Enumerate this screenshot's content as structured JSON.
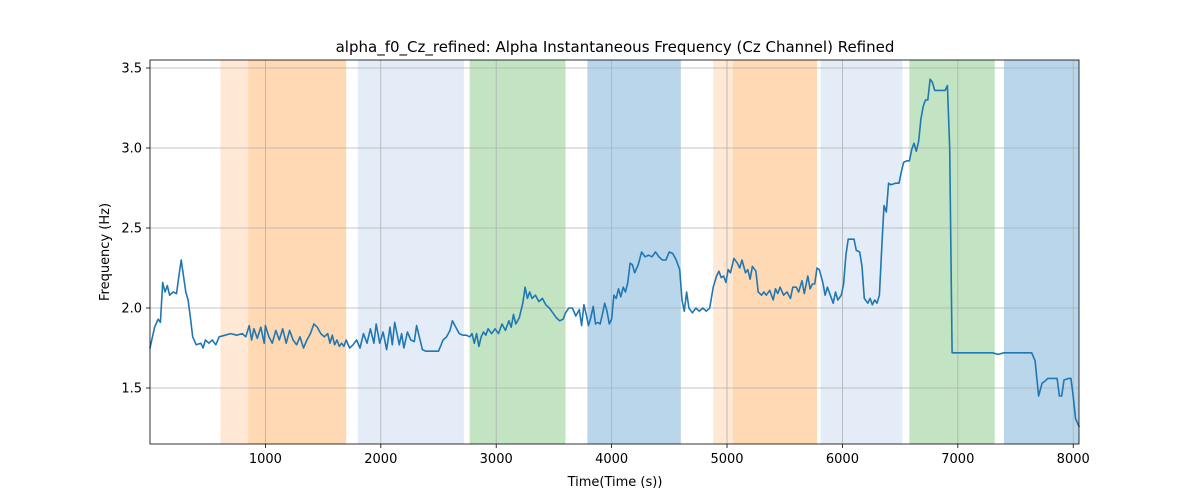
{
  "chart_data": {
    "type": "line",
    "title": "alpha_f0_Cz_refined: Alpha Instantaneous Frequency (Cz Channel) Refined",
    "xlabel": "Time(Time (s))",
    "ylabel": "Frequency (Hz)",
    "xlim": [
      0,
      8050
    ],
    "ylim": [
      1.15,
      3.55
    ],
    "xticks": [
      1000,
      2000,
      3000,
      4000,
      5000,
      6000,
      7000,
      8000
    ],
    "yticks": [
      1.5,
      2.0,
      2.5,
      3.0,
      3.5
    ],
    "grid": true,
    "bands": [
      {
        "x0": 610,
        "x1": 850,
        "color": "#ffe9d4"
      },
      {
        "x0": 850,
        "x1": 1700,
        "color": "#ffd9b3"
      },
      {
        "x0": 1800,
        "x1": 2720,
        "color": "#e4ecf7"
      },
      {
        "x0": 2770,
        "x1": 3600,
        "color": "#c2e4c2"
      },
      {
        "x0": 3790,
        "x1": 4600,
        "color": "#bad6ea"
      },
      {
        "x0": 4880,
        "x1": 5050,
        "color": "#ffe9d4"
      },
      {
        "x0": 5050,
        "x1": 5780,
        "color": "#ffd9b3"
      },
      {
        "x0": 5810,
        "x1": 6520,
        "color": "#e4ecf7"
      },
      {
        "x0": 6580,
        "x1": 7320,
        "color": "#c2e4c2"
      },
      {
        "x0": 7400,
        "x1": 8050,
        "color": "#bad6ea"
      }
    ],
    "series": [
      {
        "color": "#1f77b4",
        "points": [
          [
            0,
            1.75
          ],
          [
            40,
            1.88
          ],
          [
            70,
            1.93
          ],
          [
            90,
            1.91
          ],
          [
            110,
            2.16
          ],
          [
            130,
            2.1
          ],
          [
            150,
            2.14
          ],
          [
            170,
            2.08
          ],
          [
            200,
            2.1
          ],
          [
            230,
            2.09
          ],
          [
            250,
            2.2
          ],
          [
            270,
            2.3
          ],
          [
            290,
            2.2
          ],
          [
            310,
            2.1
          ],
          [
            330,
            2.05
          ],
          [
            350,
            1.94
          ],
          [
            370,
            1.82
          ],
          [
            400,
            1.77
          ],
          [
            440,
            1.78
          ],
          [
            460,
            1.75
          ],
          [
            480,
            1.8
          ],
          [
            510,
            1.78
          ],
          [
            540,
            1.8
          ],
          [
            570,
            1.77
          ],
          [
            600,
            1.82
          ],
          [
            650,
            1.83
          ],
          [
            700,
            1.84
          ],
          [
            750,
            1.83
          ],
          [
            800,
            1.84
          ],
          [
            830,
            1.82
          ],
          [
            860,
            1.89
          ],
          [
            880,
            1.8
          ],
          [
            900,
            1.87
          ],
          [
            930,
            1.81
          ],
          [
            960,
            1.88
          ],
          [
            990,
            1.78
          ],
          [
            1000,
            1.89
          ],
          [
            1030,
            1.82
          ],
          [
            1060,
            1.78
          ],
          [
            1090,
            1.86
          ],
          [
            1120,
            1.8
          ],
          [
            1150,
            1.87
          ],
          [
            1180,
            1.78
          ],
          [
            1210,
            1.86
          ],
          [
            1240,
            1.8
          ],
          [
            1270,
            1.77
          ],
          [
            1300,
            1.82
          ],
          [
            1330,
            1.75
          ],
          [
            1360,
            1.8
          ],
          [
            1390,
            1.84
          ],
          [
            1420,
            1.9
          ],
          [
            1450,
            1.88
          ],
          [
            1480,
            1.84
          ],
          [
            1510,
            1.82
          ],
          [
            1540,
            1.84
          ],
          [
            1560,
            1.78
          ],
          [
            1580,
            1.83
          ],
          [
            1600,
            1.77
          ],
          [
            1620,
            1.8
          ],
          [
            1640,
            1.76
          ],
          [
            1660,
            1.78
          ],
          [
            1680,
            1.76
          ],
          [
            1700,
            1.8
          ],
          [
            1730,
            1.75
          ],
          [
            1760,
            1.77
          ],
          [
            1790,
            1.8
          ],
          [
            1820,
            1.75
          ],
          [
            1850,
            1.84
          ],
          [
            1880,
            1.78
          ],
          [
            1910,
            1.87
          ],
          [
            1940,
            1.78
          ],
          [
            1960,
            1.9
          ],
          [
            1990,
            1.78
          ],
          [
            2020,
            1.85
          ],
          [
            2050,
            1.74
          ],
          [
            2080,
            1.88
          ],
          [
            2100,
            1.77
          ],
          [
            2120,
            1.91
          ],
          [
            2140,
            1.84
          ],
          [
            2160,
            1.77
          ],
          [
            2180,
            1.84
          ],
          [
            2200,
            1.75
          ],
          [
            2230,
            1.85
          ],
          [
            2260,
            1.8
          ],
          [
            2290,
            1.79
          ],
          [
            2310,
            1.89
          ],
          [
            2330,
            1.83
          ],
          [
            2360,
            1.74
          ],
          [
            2390,
            1.73
          ],
          [
            2420,
            1.73
          ],
          [
            2460,
            1.73
          ],
          [
            2500,
            1.73
          ],
          [
            2540,
            1.8
          ],
          [
            2570,
            1.82
          ],
          [
            2600,
            1.86
          ],
          [
            2620,
            1.92
          ],
          [
            2650,
            1.88
          ],
          [
            2680,
            1.84
          ],
          [
            2710,
            1.83
          ],
          [
            2740,
            1.83
          ],
          [
            2770,
            1.82
          ],
          [
            2790,
            1.84
          ],
          [
            2810,
            1.78
          ],
          [
            2830,
            1.84
          ],
          [
            2850,
            1.76
          ],
          [
            2870,
            1.82
          ],
          [
            2890,
            1.85
          ],
          [
            2910,
            1.83
          ],
          [
            2930,
            1.87
          ],
          [
            2960,
            1.84
          ],
          [
            2990,
            1.87
          ],
          [
            3020,
            1.84
          ],
          [
            3050,
            1.9
          ],
          [
            3080,
            1.86
          ],
          [
            3110,
            1.92
          ],
          [
            3130,
            1.88
          ],
          [
            3150,
            1.96
          ],
          [
            3170,
            1.9
          ],
          [
            3200,
            1.94
          ],
          [
            3230,
            2.03
          ],
          [
            3250,
            2.13
          ],
          [
            3270,
            2.06
          ],
          [
            3290,
            2.1
          ],
          [
            3310,
            2.06
          ],
          [
            3340,
            2.08
          ],
          [
            3370,
            2.04
          ],
          [
            3400,
            2.06
          ],
          [
            3430,
            2.02
          ],
          [
            3460,
            2.0
          ],
          [
            3490,
            1.97
          ],
          [
            3520,
            1.94
          ],
          [
            3550,
            1.92
          ],
          [
            3580,
            1.93
          ],
          [
            3600,
            1.97
          ],
          [
            3630,
            2.0
          ],
          [
            3660,
            2.0
          ],
          [
            3690,
            1.95
          ],
          [
            3720,
            1.99
          ],
          [
            3740,
            1.89
          ],
          [
            3760,
            2.02
          ],
          [
            3780,
            1.96
          ],
          [
            3800,
            1.89
          ],
          [
            3820,
            1.94
          ],
          [
            3840,
            2.01
          ],
          [
            3860,
            1.9
          ],
          [
            3880,
            1.91
          ],
          [
            3900,
            1.9
          ],
          [
            3920,
            1.96
          ],
          [
            3940,
            2.03
          ],
          [
            3960,
            1.98
          ],
          [
            3980,
            1.9
          ],
          [
            4000,
            1.93
          ],
          [
            4020,
            2.08
          ],
          [
            4040,
            2.06
          ],
          [
            4060,
            2.12
          ],
          [
            4080,
            2.07
          ],
          [
            4100,
            2.13
          ],
          [
            4120,
            2.1
          ],
          [
            4140,
            2.16
          ],
          [
            4160,
            2.28
          ],
          [
            4180,
            2.27
          ],
          [
            4200,
            2.22
          ],
          [
            4230,
            2.27
          ],
          [
            4260,
            2.35
          ],
          [
            4290,
            2.32
          ],
          [
            4320,
            2.33
          ],
          [
            4350,
            2.32
          ],
          [
            4380,
            2.35
          ],
          [
            4410,
            2.32
          ],
          [
            4440,
            2.3
          ],
          [
            4470,
            2.3
          ],
          [
            4500,
            2.35
          ],
          [
            4530,
            2.34
          ],
          [
            4560,
            2.3
          ],
          [
            4590,
            2.24
          ],
          [
            4610,
            2.05
          ],
          [
            4630,
            1.98
          ],
          [
            4650,
            2.1
          ],
          [
            4670,
            2.0
          ],
          [
            4700,
            1.97
          ],
          [
            4730,
            2.0
          ],
          [
            4760,
            1.98
          ],
          [
            4790,
            2.0
          ],
          [
            4820,
            1.98
          ],
          [
            4850,
            2.0
          ],
          [
            4880,
            2.13
          ],
          [
            4910,
            2.2
          ],
          [
            4930,
            2.23
          ],
          [
            4950,
            2.19
          ],
          [
            4970,
            2.2
          ],
          [
            4990,
            2.16
          ],
          [
            5010,
            2.24
          ],
          [
            5030,
            2.22
          ],
          [
            5060,
            2.31
          ],
          [
            5090,
            2.28
          ],
          [
            5110,
            2.25
          ],
          [
            5130,
            2.3
          ],
          [
            5160,
            2.22
          ],
          [
            5180,
            2.24
          ],
          [
            5200,
            2.18
          ],
          [
            5220,
            2.26
          ],
          [
            5250,
            2.23
          ],
          [
            5270,
            2.1
          ],
          [
            5300,
            2.08
          ],
          [
            5320,
            2.1
          ],
          [
            5340,
            2.08
          ],
          [
            5370,
            2.11
          ],
          [
            5400,
            2.05
          ],
          [
            5420,
            2.12
          ],
          [
            5440,
            2.09
          ],
          [
            5460,
            2.13
          ],
          [
            5490,
            2.08
          ],
          [
            5520,
            2.1
          ],
          [
            5550,
            2.06
          ],
          [
            5570,
            2.13
          ],
          [
            5600,
            2.13
          ],
          [
            5620,
            2.1
          ],
          [
            5650,
            2.17
          ],
          [
            5670,
            2.09
          ],
          [
            5700,
            2.2
          ],
          [
            5720,
            2.12
          ],
          [
            5740,
            2.15
          ],
          [
            5760,
            2.15
          ],
          [
            5780,
            2.25
          ],
          [
            5800,
            2.24
          ],
          [
            5830,
            2.16
          ],
          [
            5850,
            2.08
          ],
          [
            5870,
            2.13
          ],
          [
            5900,
            2.07
          ],
          [
            5920,
            2.03
          ],
          [
            5940,
            2.1
          ],
          [
            5960,
            2.05
          ],
          [
            5990,
            2.08
          ],
          [
            6010,
            2.15
          ],
          [
            6030,
            2.33
          ],
          [
            6050,
            2.43
          ],
          [
            6080,
            2.43
          ],
          [
            6100,
            2.43
          ],
          [
            6120,
            2.36
          ],
          [
            6150,
            2.35
          ],
          [
            6170,
            2.26
          ],
          [
            6190,
            2.06
          ],
          [
            6220,
            2.03
          ],
          [
            6240,
            2.06
          ],
          [
            6260,
            2.02
          ],
          [
            6280,
            2.05
          ],
          [
            6300,
            2.03
          ],
          [
            6320,
            2.08
          ],
          [
            6340,
            2.37
          ],
          [
            6360,
            2.64
          ],
          [
            6380,
            2.6
          ],
          [
            6400,
            2.78
          ],
          [
            6420,
            2.77
          ],
          [
            6460,
            2.78
          ],
          [
            6490,
            2.78
          ],
          [
            6510,
            2.85
          ],
          [
            6530,
            2.91
          ],
          [
            6560,
            2.92
          ],
          [
            6580,
            2.92
          ],
          [
            6600,
            2.99
          ],
          [
            6620,
            3.03
          ],
          [
            6640,
            2.98
          ],
          [
            6660,
            3.04
          ],
          [
            6680,
            3.18
          ],
          [
            6700,
            3.26
          ],
          [
            6720,
            3.3
          ],
          [
            6740,
            3.3
          ],
          [
            6760,
            3.43
          ],
          [
            6780,
            3.41
          ],
          [
            6800,
            3.36
          ],
          [
            6830,
            3.36
          ],
          [
            6860,
            3.36
          ],
          [
            6890,
            3.36
          ],
          [
            6910,
            3.39
          ],
          [
            6930,
            3.0
          ],
          [
            6950,
            1.72
          ],
          [
            7000,
            1.72
          ],
          [
            7100,
            1.72
          ],
          [
            7200,
            1.72
          ],
          [
            7300,
            1.72
          ],
          [
            7350,
            1.71
          ],
          [
            7400,
            1.72
          ],
          [
            7500,
            1.72
          ],
          [
            7580,
            1.72
          ],
          [
            7640,
            1.72
          ],
          [
            7670,
            1.67
          ],
          [
            7700,
            1.45
          ],
          [
            7730,
            1.53
          ],
          [
            7750,
            1.54
          ],
          [
            7780,
            1.56
          ],
          [
            7820,
            1.56
          ],
          [
            7860,
            1.56
          ],
          [
            7880,
            1.45
          ],
          [
            7900,
            1.45
          ],
          [
            7920,
            1.55
          ],
          [
            7960,
            1.56
          ],
          [
            7980,
            1.56
          ],
          [
            8000,
            1.45
          ],
          [
            8020,
            1.31
          ],
          [
            8050,
            1.26
          ]
        ]
      }
    ]
  }
}
